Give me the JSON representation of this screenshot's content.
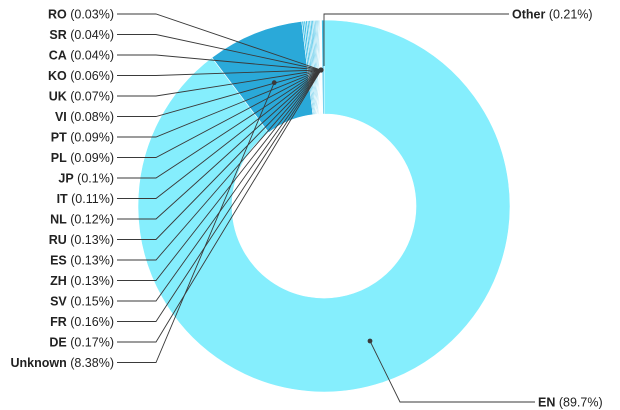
{
  "chart_data": {
    "type": "pie",
    "variant": "donut",
    "title": "",
    "colors": {
      "EN": "#85EEFD",
      "Unknown": "#2AA9D9",
      "small": "#3FBFE6",
      "slice_edge": "#ffffff",
      "leader": "#3a3a3a"
    },
    "slices": [
      {
        "code": "EN",
        "value": 89.7,
        "pct": "(89.7%)"
      },
      {
        "code": "Unknown",
        "value": 8.38,
        "pct": "(8.38%)"
      },
      {
        "code": "DE",
        "value": 0.17,
        "pct": "(0.17%)"
      },
      {
        "code": "FR",
        "value": 0.16,
        "pct": "(0.16%)"
      },
      {
        "code": "SV",
        "value": 0.15,
        "pct": "(0.15%)"
      },
      {
        "code": "ZH",
        "value": 0.13,
        "pct": "(0.13%)"
      },
      {
        "code": "ES",
        "value": 0.13,
        "pct": "(0.13%)"
      },
      {
        "code": "RU",
        "value": 0.13,
        "pct": "(0.13%)"
      },
      {
        "code": "NL",
        "value": 0.12,
        "pct": "(0.12%)"
      },
      {
        "code": "IT",
        "value": 0.11,
        "pct": "(0.11%)"
      },
      {
        "code": "JP",
        "value": 0.1,
        "pct": "(0.1%)"
      },
      {
        "code": "PL",
        "value": 0.09,
        "pct": "(0.09%)"
      },
      {
        "code": "PT",
        "value": 0.09,
        "pct": "(0.09%)"
      },
      {
        "code": "VI",
        "value": 0.08,
        "pct": "(0.08%)"
      },
      {
        "code": "UK",
        "value": 0.07,
        "pct": "(0.07%)"
      },
      {
        "code": "KO",
        "value": 0.06,
        "pct": "(0.06%)"
      },
      {
        "code": "CA",
        "value": 0.04,
        "pct": "(0.04%)"
      },
      {
        "code": "SR",
        "value": 0.04,
        "pct": "(0.04%)"
      },
      {
        "code": "RO",
        "value": 0.03,
        "pct": "(0.03%)"
      },
      {
        "code": "Other",
        "value": 0.21,
        "pct": "(0.21%)"
      }
    ]
  }
}
